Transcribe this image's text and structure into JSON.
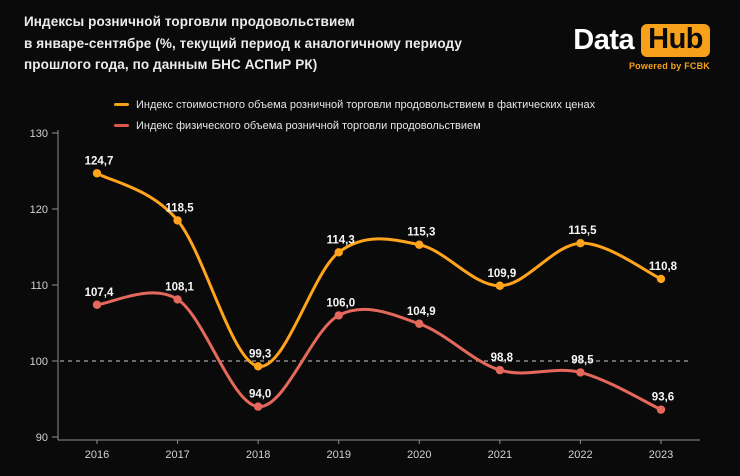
{
  "header": {
    "title_lines": [
      "Индексы розничной торговли продовольствием",
      "в январе-сентябре (%, текущий период к аналогичному периоду",
      "прошлого года, по данным БНС АСПиР РК)"
    ]
  },
  "logo": {
    "part1": "Data",
    "part2": "Hub",
    "tagline": "Powered by FCBK",
    "accent_color": "#f7a11b"
  },
  "legend": [
    {
      "label": "Индекс стоимостного объема розничной торговли продовольствием в фактических ценах",
      "color": "#f5a21d"
    },
    {
      "label": "Индекс физического объема розничной торговли продовольствием",
      "color": "#e0564c"
    }
  ],
  "chart_data": {
    "type": "line",
    "categories": [
      "2016",
      "2017",
      "2018",
      "2019",
      "2020",
      "2021",
      "2022",
      "2023"
    ],
    "series": [
      {
        "name": "Индекс стоимостного объема розничной торговли продовольствием в фактических ценах",
        "color": "#ffa41c",
        "values": [
          124.7,
          118.5,
          99.3,
          114.3,
          115.3,
          109.9,
          115.5,
          110.8
        ],
        "labels": [
          "124,7",
          "118,5",
          "99,3",
          "114,3",
          "115,3",
          "109,9",
          "115,5",
          "110,8"
        ]
      },
      {
        "name": "Индекс физического объема розничной торговли продовольствием",
        "color": "#e5685c",
        "values": [
          107.4,
          108.1,
          94.0,
          106.0,
          104.9,
          98.8,
          98.5,
          93.6
        ],
        "labels": [
          "107,4",
          "108,1",
          "94,0",
          "106,0",
          "104,9",
          "98,8",
          "98,5",
          "93,6"
        ]
      }
    ],
    "y_ticks": [
      130,
      120,
      110,
      100,
      90
    ],
    "ylim": [
      90,
      130
    ],
    "reference_line": 100,
    "grid": false,
    "legend_position": "top",
    "title": "",
    "xlabel": "",
    "ylabel": ""
  }
}
